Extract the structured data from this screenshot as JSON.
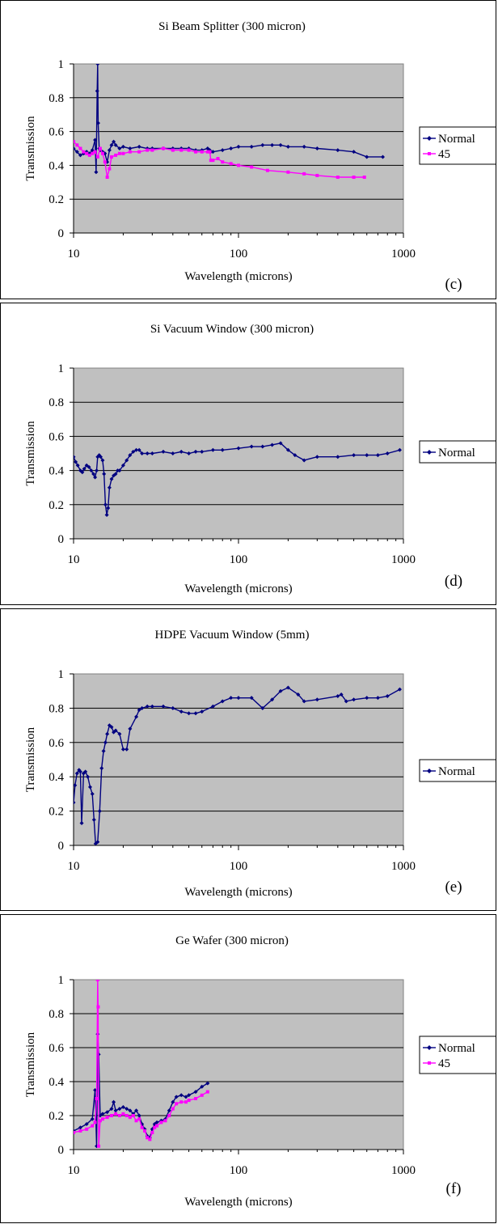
{
  "chart_data": [
    {
      "type": "line",
      "panel_label": "(c)",
      "title": "Si Beam Splitter (300 micron)",
      "xlabel": "Wavelength (microns)",
      "ylabel": "Transmission",
      "xscale": "log",
      "xlim": [
        10,
        1000
      ],
      "ylim": [
        0,
        1
      ],
      "xticks": [
        "10",
        "100",
        "1000"
      ],
      "yticks": [
        "0",
        "0.2",
        "0.4",
        "0.6",
        "0.8",
        "1"
      ],
      "grid": "horizontal",
      "legend": "right",
      "series": [
        {
          "name": "Normal",
          "color": "#000080",
          "marker": "diamond",
          "x": [
            10,
            10.5,
            11,
            11.5,
            12,
            12.5,
            13,
            13.5,
            13.7,
            13.9,
            14.0,
            14.1,
            14.3,
            14.5,
            15,
            15.5,
            16,
            16.5,
            17,
            17.5,
            18,
            19,
            20,
            22,
            25,
            28,
            30,
            35,
            40,
            45,
            50,
            55,
            60,
            65,
            67,
            68,
            70,
            80,
            90,
            100,
            120,
            140,
            160,
            180,
            200,
            250,
            300,
            400,
            500,
            600,
            750
          ],
          "y": [
            0.5,
            0.48,
            0.46,
            0.47,
            0.48,
            0.47,
            0.49,
            0.55,
            0.36,
            0.84,
            1.0,
            0.65,
            0.5,
            0.49,
            0.48,
            0.47,
            0.42,
            0.49,
            0.52,
            0.54,
            0.52,
            0.5,
            0.51,
            0.5,
            0.51,
            0.5,
            0.5,
            0.5,
            0.5,
            0.5,
            0.5,
            0.49,
            0.49,
            0.5,
            0.49,
            0.48,
            0.48,
            0.49,
            0.5,
            0.51,
            0.51,
            0.52,
            0.52,
            0.52,
            0.51,
            0.51,
            0.5,
            0.49,
            0.48,
            0.45,
            0.45
          ]
        },
        {
          "name": "45",
          "color": "#ff00ff",
          "marker": "square",
          "x": [
            10,
            10.5,
            11,
            11.5,
            12,
            12.5,
            13,
            13.5,
            14,
            14.5,
            15,
            15.5,
            16,
            16.5,
            17,
            18,
            19,
            20,
            22,
            25,
            28,
            30,
            35,
            40,
            45,
            50,
            55,
            60,
            65,
            67,
            68,
            70,
            75,
            80,
            90,
            100,
            120,
            150,
            200,
            250,
            300,
            400,
            500,
            580
          ],
          "y": [
            0.54,
            0.52,
            0.5,
            0.48,
            0.47,
            0.46,
            0.47,
            0.48,
            0.45,
            0.5,
            0.47,
            0.42,
            0.33,
            0.38,
            0.45,
            0.46,
            0.47,
            0.47,
            0.48,
            0.48,
            0.49,
            0.49,
            0.5,
            0.49,
            0.49,
            0.49,
            0.48,
            0.48,
            0.48,
            0.48,
            0.43,
            0.43,
            0.44,
            0.42,
            0.41,
            0.4,
            0.39,
            0.37,
            0.36,
            0.35,
            0.34,
            0.33,
            0.33,
            0.33
          ]
        }
      ]
    },
    {
      "type": "line",
      "panel_label": "(d)",
      "title": "Si Vacuum Window (300 micron)",
      "xlabel": "Wavelength (microns)",
      "ylabel": "Transmission",
      "xscale": "log",
      "xlim": [
        10,
        1000
      ],
      "ylim": [
        0,
        1
      ],
      "xticks": [
        "10",
        "100",
        "1000"
      ],
      "yticks": [
        "0",
        "0.2",
        "0.4",
        "0.6",
        "0.8",
        "1"
      ],
      "grid": "horizontal",
      "legend": "right",
      "series": [
        {
          "name": "Normal",
          "color": "#000080",
          "marker": "diamond",
          "x": [
            10,
            10.3,
            10.6,
            11,
            11.3,
            11.6,
            12,
            12.4,
            12.8,
            13.2,
            13.5,
            13.8,
            14.0,
            14.3,
            14.6,
            15,
            15.3,
            15.6,
            15.9,
            16.2,
            16.5,
            17,
            17.5,
            18,
            18.5,
            19,
            20,
            21,
            22,
            23,
            24,
            25,
            26,
            28,
            30,
            35,
            40,
            45,
            50,
            55,
            60,
            70,
            80,
            100,
            120,
            140,
            160,
            180,
            200,
            220,
            250,
            300,
            400,
            500,
            600,
            700,
            800,
            950
          ],
          "y": [
            0.48,
            0.45,
            0.43,
            0.4,
            0.39,
            0.41,
            0.43,
            0.42,
            0.4,
            0.38,
            0.36,
            0.4,
            0.48,
            0.49,
            0.48,
            0.46,
            0.38,
            0.2,
            0.14,
            0.18,
            0.3,
            0.35,
            0.37,
            0.38,
            0.4,
            0.4,
            0.43,
            0.46,
            0.49,
            0.51,
            0.52,
            0.52,
            0.5,
            0.5,
            0.5,
            0.51,
            0.5,
            0.51,
            0.5,
            0.51,
            0.51,
            0.52,
            0.52,
            0.53,
            0.54,
            0.54,
            0.55,
            0.56,
            0.52,
            0.49,
            0.46,
            0.48,
            0.48,
            0.49,
            0.49,
            0.49,
            0.5,
            0.52
          ]
        }
      ]
    },
    {
      "type": "line",
      "panel_label": "(e)",
      "title": "HDPE Vacuum Window (5mm)",
      "xlabel": "Wavelength (microns)",
      "ylabel": "Transmission",
      "xscale": "log",
      "xlim": [
        10,
        1000
      ],
      "ylim": [
        0,
        1
      ],
      "xticks": [
        "10",
        "100",
        "1000"
      ],
      "yticks": [
        "0",
        "0.2",
        "0.4",
        "0.6",
        "0.8",
        "1"
      ],
      "grid": "horizontal",
      "legend": "right",
      "series": [
        {
          "name": "Normal",
          "color": "#000080",
          "marker": "diamond",
          "x": [
            10,
            10.2,
            10.5,
            10.8,
            11,
            11.2,
            11.5,
            11.8,
            12.2,
            12.6,
            13,
            13.3,
            13.6,
            14.0,
            14.4,
            14.8,
            15.2,
            15.6,
            16,
            16.5,
            17,
            17.5,
            18,
            19,
            20,
            21,
            22,
            24,
            25,
            26,
            28,
            30,
            35,
            40,
            45,
            50,
            55,
            60,
            70,
            80,
            90,
            100,
            120,
            140,
            160,
            180,
            200,
            230,
            250,
            300,
            400,
            420,
            450,
            500,
            600,
            700,
            800,
            950
          ],
          "y": [
            0.25,
            0.35,
            0.42,
            0.44,
            0.43,
            0.13,
            0.42,
            0.43,
            0.4,
            0.34,
            0.3,
            0.15,
            0.01,
            0.02,
            0.2,
            0.45,
            0.55,
            0.6,
            0.65,
            0.7,
            0.69,
            0.66,
            0.67,
            0.65,
            0.56,
            0.56,
            0.68,
            0.75,
            0.79,
            0.8,
            0.81,
            0.81,
            0.81,
            0.8,
            0.78,
            0.77,
            0.77,
            0.78,
            0.81,
            0.84,
            0.86,
            0.86,
            0.86,
            0.8,
            0.85,
            0.9,
            0.92,
            0.88,
            0.84,
            0.85,
            0.87,
            0.88,
            0.84,
            0.85,
            0.86,
            0.86,
            0.87,
            0.91
          ]
        }
      ]
    },
    {
      "type": "line",
      "panel_label": "(f)",
      "title": "Ge Wafer (300 micron)",
      "xlabel": "Wavelength (microns)",
      "ylabel": "Transmission",
      "xscale": "log",
      "xlim": [
        10,
        1000
      ],
      "ylim": [
        0,
        1
      ],
      "xticks": [
        "10",
        "100",
        "1000"
      ],
      "yticks": [
        "0",
        "0.2",
        "0.4",
        "0.6",
        "0.8",
        "1"
      ],
      "grid": "horizontal",
      "legend": "right",
      "series": [
        {
          "name": "Normal",
          "color": "#000080",
          "marker": "diamond",
          "x": [
            10,
            11,
            12,
            13,
            13.5,
            13.8,
            14.0,
            14.2,
            14.5,
            15,
            16,
            17,
            17.5,
            18,
            19,
            20,
            21,
            22,
            23,
            24,
            25,
            26,
            27,
            28,
            29,
            30,
            31,
            32,
            34,
            36,
            38,
            40,
            42,
            45,
            48,
            50,
            55,
            60,
            65
          ],
          "y": [
            0.11,
            0.13,
            0.15,
            0.18,
            0.35,
            0.02,
            0.68,
            0.56,
            0.2,
            0.21,
            0.22,
            0.24,
            0.28,
            0.23,
            0.24,
            0.25,
            0.24,
            0.23,
            0.21,
            0.23,
            0.2,
            0.15,
            0.12,
            0.08,
            0.07,
            0.12,
            0.15,
            0.16,
            0.17,
            0.18,
            0.23,
            0.28,
            0.31,
            0.32,
            0.31,
            0.32,
            0.34,
            0.37,
            0.39
          ]
        },
        {
          "name": "45",
          "color": "#ff00ff",
          "marker": "square",
          "x": [
            10,
            11,
            12,
            13,
            13.5,
            13.8,
            14.0,
            14.1,
            14.2,
            14.5,
            15,
            16,
            17,
            18,
            19,
            20,
            21,
            22,
            23,
            24,
            25,
            26,
            27,
            28,
            29,
            30,
            31,
            32,
            34,
            36,
            38,
            40,
            42,
            45,
            48,
            50,
            55,
            60,
            65
          ],
          "y": [
            0.1,
            0.11,
            0.12,
            0.14,
            0.16,
            0.3,
            1.0,
            0.84,
            0.02,
            0.17,
            0.18,
            0.19,
            0.2,
            0.21,
            0.2,
            0.21,
            0.2,
            0.19,
            0.2,
            0.17,
            0.18,
            0.13,
            0.11,
            0.07,
            0.06,
            0.1,
            0.13,
            0.14,
            0.16,
            0.17,
            0.2,
            0.24,
            0.27,
            0.28,
            0.28,
            0.29,
            0.3,
            0.32,
            0.34
          ]
        }
      ]
    }
  ]
}
